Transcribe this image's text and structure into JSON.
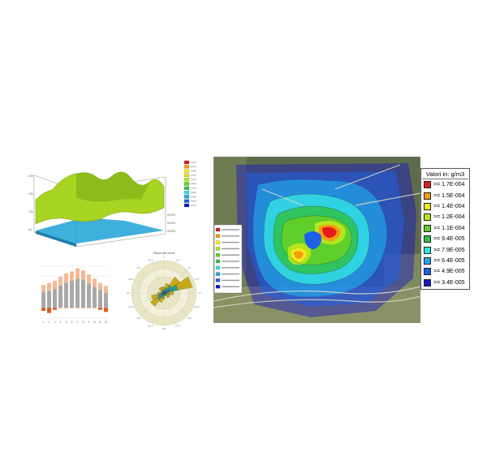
{
  "map": {
    "legend_title": "Valori in: g/m3",
    "legend": [
      {
        "label": ">= 1.7E-004",
        "color": "#e41a1c"
      },
      {
        "label": ">= 1.5E-004",
        "color": "#f39c12"
      },
      {
        "label": ">= 1.4E-004",
        "color": "#f5e71b"
      },
      {
        "label": ">= 1.2E-004",
        "color": "#b5e61d"
      },
      {
        "label": ">= 1.1E-004",
        "color": "#5ecf2b"
      },
      {
        "label": ">= 9.4E-005",
        "color": "#2ec24a"
      },
      {
        "label": ">= 7.9E-005",
        "color": "#33e3e3"
      },
      {
        "label": ">= 6.4E-005",
        "color": "#22a6e8"
      },
      {
        "label": ">= 4.9E-005",
        "color": "#1e60e6"
      },
      {
        "label": ">= 3.4E-005",
        "color": "#1414c8"
      }
    ]
  },
  "chart_data": [
    {
      "type": "area",
      "title": "",
      "description_surfaces": [
        "upper surface",
        "lower surface"
      ],
      "colors": {
        "upper": "#9ccc1c",
        "lower": "#2aa6d8"
      }
    },
    {
      "type": "bar",
      "categories": [
        "1",
        "2",
        "3",
        "4",
        "5",
        "6",
        "7",
        "8",
        "9",
        "10",
        "11",
        "12"
      ],
      "series": [
        {
          "values": [
            22,
            24,
            26,
            30,
            33,
            35,
            38,
            36,
            32,
            28,
            24,
            21
          ],
          "color": "#f5b893"
        },
        {
          "values": [
            15,
            16,
            18,
            21,
            24,
            26,
            28,
            27,
            23,
            20,
            17,
            14
          ],
          "color": "#a8a8a8"
        },
        {
          "values": [
            -3,
            -5,
            -2,
            0,
            0,
            0,
            0,
            0,
            0,
            0,
            -2,
            -4
          ],
          "color": "#e05a1e"
        }
      ],
      "ylim": [
        -10,
        40
      ]
    },
    {
      "type": "pie",
      "title": "Rosa dei venti",
      "sectors": [
        {
          "dir": 0,
          "value": 2
        },
        {
          "dir": 22.5,
          "value": 3
        },
        {
          "dir": 45,
          "value": 6
        },
        {
          "dir": 67.5,
          "value": 9
        },
        {
          "dir": 90,
          "value": 3
        },
        {
          "dir": 112.5,
          "value": 2
        },
        {
          "dir": 135,
          "value": 2
        },
        {
          "dir": 157.5,
          "value": 1
        },
        {
          "dir": 180,
          "value": 2
        },
        {
          "dir": 202.5,
          "value": 3
        },
        {
          "dir": 225,
          "value": 5
        },
        {
          "dir": 247.5,
          "value": 4
        },
        {
          "dir": 270,
          "value": 2
        },
        {
          "dir": 292.5,
          "value": 1
        },
        {
          "dir": 315,
          "value": 2
        },
        {
          "dir": 337.5,
          "value": 2
        }
      ],
      "colors": [
        "#c8a818",
        "#2c9a8c",
        "#3a56b0"
      ]
    }
  ]
}
